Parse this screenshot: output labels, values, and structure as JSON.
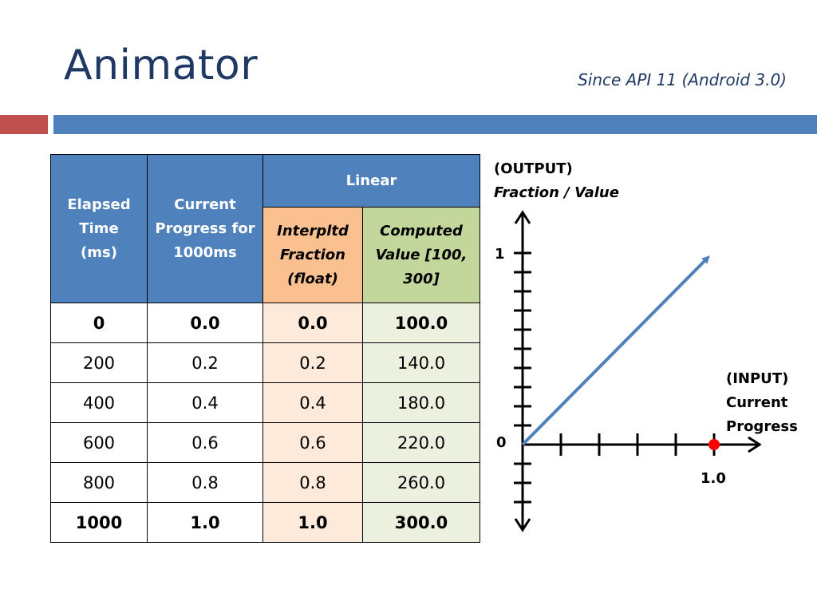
{
  "slide": {
    "title": "Animator",
    "subtitle": "Since API 11 (Android 3.0)"
  },
  "colors": {
    "title": "#1f3864",
    "accent_red": "#c0504d",
    "accent_blue": "#4f81bd",
    "orange_header": "#fac090",
    "green_header": "#c3d69b",
    "orange_cell": "#fdeada",
    "green_cell": "#ebf1de",
    "marker": "#ff0000"
  },
  "table": {
    "headers": {
      "elapsed": "Elapsed Time (ms)",
      "progress": "Current Progress for 1000ms",
      "linear": "Linear",
      "fraction": "Interpltd Fraction (float)",
      "computed": "Computed Value [100, 300]"
    },
    "rows": [
      {
        "elapsed": "0",
        "progress": "0.0",
        "fraction": "0.0",
        "value": "100.0"
      },
      {
        "elapsed": "200",
        "progress": "0.2",
        "fraction": "0.2",
        "value": "140.0"
      },
      {
        "elapsed": "400",
        "progress": "0.4",
        "fraction": "0.4",
        "value": "180.0"
      },
      {
        "elapsed": "600",
        "progress": "0.6",
        "fraction": "0.6",
        "value": "220.0"
      },
      {
        "elapsed": "800",
        "progress": "0.8",
        "fraction": "0.8",
        "value": "260.0"
      },
      {
        "elapsed": "1000",
        "progress": "1.0",
        "fraction": "1.0",
        "value": "300.0"
      }
    ]
  },
  "graph": {
    "y_axis_title": "(OUTPUT)",
    "y_axis_subtitle": "Fraction / Value",
    "x_axis_title": "(INPUT)",
    "x_axis_line2": "Current",
    "x_axis_line3": "Progress",
    "origin_label": "0",
    "y_tick_label": "1",
    "x_tick_label": "1.0"
  }
}
